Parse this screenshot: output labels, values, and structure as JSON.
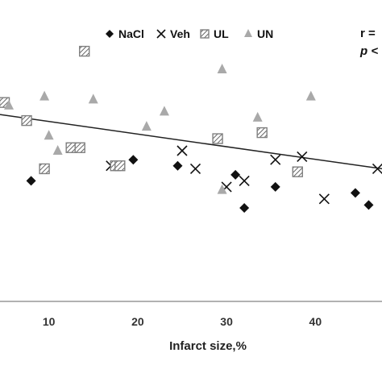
{
  "chart_data": {
    "type": "scatter",
    "xlabel": "Infarct size,%",
    "ylabel": "",
    "title": "",
    "xlim": [
      4.5,
      47.5
    ],
    "ylim": [
      0,
      100
    ],
    "x_ticks": [
      10,
      20,
      30,
      40
    ],
    "x_tick_labels": [
      "10",
      "20",
      "30",
      "40"
    ],
    "grid": false,
    "legend_position": "top",
    "legend": [
      "NaCl",
      "Veh",
      "UL",
      "UN"
    ],
    "annotations": [
      "r =",
      "p <"
    ],
    "trendline": {
      "x": [
        4.5,
        47.5
      ],
      "y": [
        62,
        44
      ]
    },
    "colors": {
      "NaCl": "#111111",
      "Veh": "#111111",
      "UL": "#808080",
      "UN": "#a9a9a9",
      "trendline": "#222222",
      "axis": "#999999"
    },
    "series": [
      {
        "name": "NaCl",
        "marker": "diamond",
        "points": [
          [
            8.0,
            40
          ],
          [
            19.5,
            47
          ],
          [
            24.5,
            45
          ],
          [
            31.0,
            42
          ],
          [
            32.0,
            31
          ],
          [
            35.5,
            38
          ],
          [
            44.5,
            36
          ],
          [
            46.0,
            32
          ]
        ]
      },
      {
        "name": "Veh",
        "marker": "x",
        "points": [
          [
            17.0,
            45
          ],
          [
            25.0,
            50
          ],
          [
            26.5,
            44
          ],
          [
            30.0,
            38
          ],
          [
            32.0,
            40
          ],
          [
            35.5,
            47
          ],
          [
            38.5,
            48
          ],
          [
            41.0,
            34
          ],
          [
            47.0,
            44
          ]
        ]
      },
      {
        "name": "UL",
        "marker": "hatched-square",
        "points": [
          [
            5.0,
            66
          ],
          [
            7.5,
            60
          ],
          [
            9.5,
            44
          ],
          [
            12.5,
            51
          ],
          [
            13.5,
            51
          ],
          [
            14.0,
            83
          ],
          [
            17.5,
            45
          ],
          [
            18.0,
            45
          ],
          [
            29.0,
            54
          ],
          [
            34.0,
            56
          ],
          [
            38.0,
            43
          ]
        ]
      },
      {
        "name": "UN",
        "marker": "triangle",
        "points": [
          [
            5.5,
            65
          ],
          [
            9.5,
            68
          ],
          [
            10.0,
            55
          ],
          [
            11.0,
            50
          ],
          [
            15.0,
            67
          ],
          [
            21.0,
            58
          ],
          [
            23.0,
            63
          ],
          [
            29.5,
            37
          ],
          [
            29.5,
            77
          ],
          [
            33.5,
            61
          ],
          [
            39.5,
            68
          ]
        ]
      }
    ]
  }
}
